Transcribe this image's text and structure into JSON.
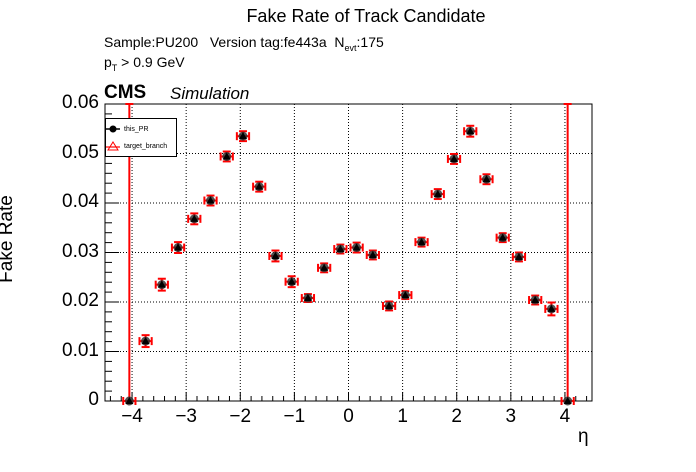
{
  "title": "Fake Rate of Track Candidate",
  "subtitle": {
    "sample": "Sample:PU200",
    "version": "Version tag:fe443a",
    "nevt_prefix": "N",
    "nevt_sub": "evt",
    "nevt_value": ":175",
    "pt_prefix": "p",
    "pt_sub": "T",
    "pt_cut": " > 0.9 GeV"
  },
  "cms_label": "CMS",
  "simulation_label": "Simulation",
  "legend": [
    {
      "label": "this_PR",
      "color": "#000000",
      "marker": "circle"
    },
    {
      "label": "target_branch",
      "color": "#ff0000",
      "marker": "open-triangle"
    }
  ],
  "chart_data": {
    "type": "scatter",
    "title": "Fake Rate of Track Candidate",
    "xlabel": "η",
    "ylabel": "Fake Rate",
    "xlim": [
      -4.5,
      4.5
    ],
    "ylim": [
      0,
      0.06
    ],
    "xticks": [
      "−4",
      "−3",
      "−2",
      "−1",
      "0",
      "1",
      "2",
      "3",
      "4"
    ],
    "xtick_values": [
      -4,
      -3,
      -2,
      -1,
      0,
      1,
      2,
      3,
      4
    ],
    "yticks": [
      "0",
      "0.01",
      "0.02",
      "0.03",
      "0.04",
      "0.05",
      "0.06"
    ],
    "ytick_values": [
      0,
      0.01,
      0.02,
      0.03,
      0.04,
      0.05,
      0.06
    ],
    "grid": true,
    "legend_position": "top-left",
    "x": [
      -4.05,
      -3.75,
      -3.45,
      -3.15,
      -2.85,
      -2.55,
      -2.25,
      -1.95,
      -1.65,
      -1.35,
      -1.05,
      -0.75,
      -0.45,
      -0.15,
      0.15,
      0.45,
      0.75,
      1.05,
      1.35,
      1.65,
      1.95,
      2.25,
      2.55,
      2.85,
      3.15,
      3.45,
      3.75,
      4.05
    ],
    "x_err": 0.15,
    "series": [
      {
        "name": "this_PR",
        "color": "#000000",
        "values": [
          0,
          0.0121,
          0.0235,
          0.031,
          0.0368,
          0.0405,
          0.0494,
          0.0535,
          0.0433,
          0.0293,
          0.0241,
          0.0208,
          0.0269,
          0.0307,
          0.031,
          0.0295,
          0.0192,
          0.0214,
          0.0321,
          0.0418,
          0.0489,
          0.0545,
          0.0448,
          0.033,
          0.0291,
          0.0204,
          0.0186,
          0
        ]
      },
      {
        "name": "target_branch",
        "color": "#ff0000",
        "values": [
          0,
          0.0121,
          0.0235,
          0.031,
          0.0368,
          0.0405,
          0.0494,
          0.0535,
          0.0433,
          0.0293,
          0.0241,
          0.0208,
          0.0269,
          0.0307,
          0.031,
          0.0295,
          0.0192,
          0.0214,
          0.0321,
          0.0418,
          0.0489,
          0.0545,
          0.0448,
          0.033,
          0.0291,
          0.0204,
          0.0186,
          0
        ]
      }
    ],
    "y_err": [
      0.06,
      0.0012,
      0.0012,
      0.0011,
      0.0011,
      0.001,
      0.001,
      0.001,
      0.001,
      0.0011,
      0.0011,
      0.0008,
      0.0009,
      0.0009,
      0.001,
      0.0009,
      0.0009,
      0.0008,
      0.0009,
      0.001,
      0.001,
      0.0011,
      0.001,
      0.0009,
      0.0009,
      0.0009,
      0.0013,
      0.06
    ]
  }
}
